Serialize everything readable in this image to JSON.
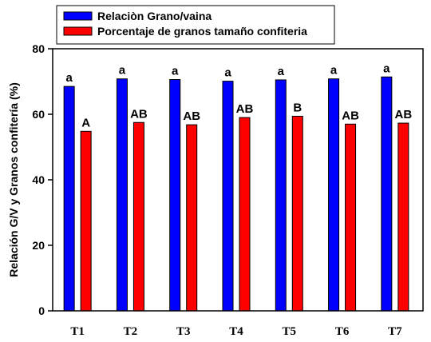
{
  "chart_data": {
    "type": "bar",
    "title": "",
    "xlabel": "",
    "ylabel": "Relación G/V y Granos confitería (%)",
    "ylim": [
      0,
      80
    ],
    "yticks": [
      0,
      20,
      40,
      60,
      80
    ],
    "grid": false,
    "legend_position": "top-left",
    "categories": [
      "T1",
      "T2",
      "T3",
      "T4",
      "T5",
      "T6",
      "T7"
    ],
    "series": [
      {
        "name": "Relaciòn Grano/vaina",
        "color": "#0000ff",
        "values": [
          68.5,
          70.8,
          70.6,
          70.1,
          70.5,
          70.8,
          71.4
        ],
        "labels": [
          "a",
          "a",
          "a",
          "a",
          "a",
          "a",
          "a"
        ]
      },
      {
        "name": "Porcentaje de granos tamaño confiteria",
        "color": "#ff0000",
        "values": [
          54.8,
          57.5,
          56.8,
          59.0,
          59.4,
          57.0,
          57.3
        ],
        "labels": [
          "A",
          "AB",
          "AB",
          "AB",
          "B",
          "AB",
          "AB"
        ]
      }
    ]
  }
}
